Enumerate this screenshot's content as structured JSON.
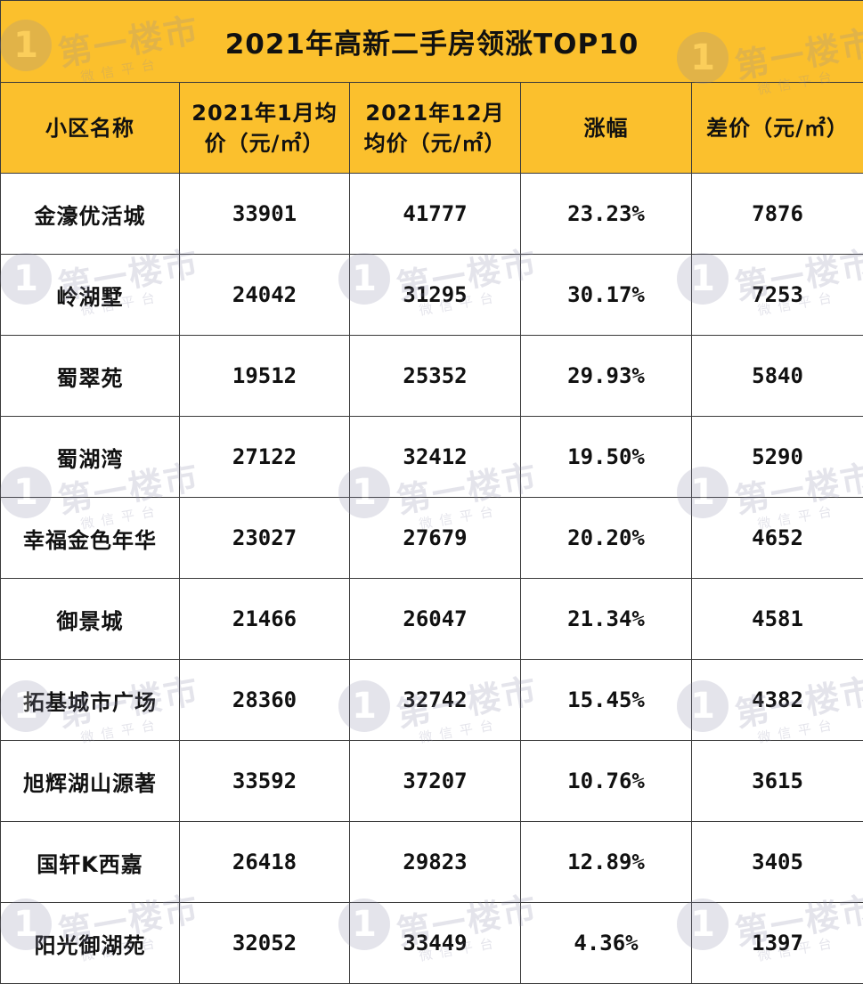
{
  "colors": {
    "header_bg": "#FBC02D",
    "border": "#3a3a3a",
    "text": "#111111",
    "watermark": "#8a8aa8"
  },
  "watermark": {
    "icon_digit": "1",
    "name": "第一楼市",
    "sub": "微信平台"
  },
  "chart_data": {
    "type": "table",
    "title": "2021年高新二手房领涨TOP10",
    "columns": [
      "小区名称",
      "2021年1月均价（元/㎡）",
      "2021年12月均价（元/㎡）",
      "涨幅",
      "差价（元/㎡）"
    ],
    "rows": [
      {
        "name": "金濠优活城",
        "jan": "33901",
        "dec": "41777",
        "rise": "23.23%",
        "diff": "7876"
      },
      {
        "name": "岭湖墅",
        "jan": "24042",
        "dec": "31295",
        "rise": "30.17%",
        "diff": "7253"
      },
      {
        "name": "蜀翠苑",
        "jan": "19512",
        "dec": "25352",
        "rise": "29.93%",
        "diff": "5840"
      },
      {
        "name": "蜀湖湾",
        "jan": "27122",
        "dec": "32412",
        "rise": "19.50%",
        "diff": "5290"
      },
      {
        "name": "幸福金色年华",
        "jan": "23027",
        "dec": "27679",
        "rise": "20.20%",
        "diff": "4652"
      },
      {
        "name": "御景城",
        "jan": "21466",
        "dec": "26047",
        "rise": "21.34%",
        "diff": "4581"
      },
      {
        "name": "拓基城市广场",
        "jan": "28360",
        "dec": "32742",
        "rise": "15.45%",
        "diff": "4382"
      },
      {
        "name": "旭辉湖山源著",
        "jan": "33592",
        "dec": "37207",
        "rise": "10.76%",
        "diff": "3615"
      },
      {
        "name": "国轩K西嘉",
        "jan": "26418",
        "dec": "29823",
        "rise": "12.89%",
        "diff": "3405"
      },
      {
        "name": "阳光御湖苑",
        "jan": "32052",
        "dec": "33449",
        "rise": "4.36%",
        "diff": "1397"
      }
    ]
  }
}
